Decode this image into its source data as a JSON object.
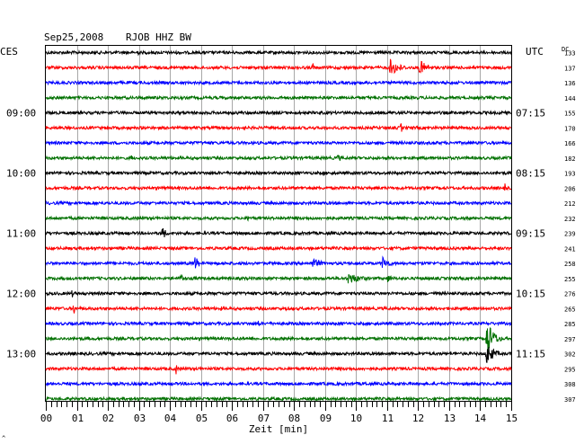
{
  "header": {
    "date": "Sep25,2008",
    "station": "RJOB HHZ BW",
    "left_tz": "CES",
    "right_tz": "UTC",
    "dc_label": "DC"
  },
  "footer": {
    "xlabel": "Zeit [min]",
    "corner_mark": "^"
  },
  "chart_data": {
    "type": "line",
    "title": "Sep25,2008  RJOB HHZ BW",
    "xlabel": "Zeit [min]",
    "xlim": [
      0,
      15
    ],
    "x_ticks": [
      "00",
      "01",
      "02",
      "03",
      "04",
      "05",
      "06",
      "07",
      "08",
      "09",
      "10",
      "11",
      "12",
      "13",
      "14",
      "15"
    ],
    "trace_colors": [
      "#000000",
      "#ff0000",
      "#0000ff",
      "#007000"
    ],
    "local_time_labels": [
      "09:00",
      "10:00",
      "11:00",
      "12:00",
      "13:00"
    ],
    "utc_time_labels": [
      "07:15",
      "08:15",
      "09:15",
      "10:15",
      "11:15"
    ],
    "dc_offsets": [
      133,
      137,
      136,
      144,
      155,
      170,
      166,
      182,
      193,
      206,
      212,
      232,
      239,
      241,
      258,
      255,
      276,
      265,
      285,
      297,
      302,
      295,
      308,
      307
    ],
    "events": [
      {
        "row": 0,
        "minute": 2.95,
        "amplitude": 7
      },
      {
        "row": 1,
        "minute": 8.6,
        "amplitude": 8
      },
      {
        "row": 1,
        "minute": 11.1,
        "amplitude": 10,
        "duration": 0.7
      },
      {
        "row": 1,
        "minute": 12.05,
        "amplitude": 9,
        "duration": 0.6
      },
      {
        "row": 5,
        "minute": 11.45,
        "amplitude": 8
      },
      {
        "row": 7,
        "minute": 2.75,
        "amplitude": 7
      },
      {
        "row": 7,
        "minute": 9.4,
        "amplitude": 4,
        "duration": 0.5
      },
      {
        "row": 8,
        "minute": 8.95,
        "amplitude": 5
      },
      {
        "row": 9,
        "minute": 4.3,
        "amplitude": 3
      },
      {
        "row": 9,
        "minute": 14.8,
        "amplitude": 7
      },
      {
        "row": 11,
        "minute": 6.5,
        "amplitude": 5
      },
      {
        "row": 12,
        "minute": 3.75,
        "amplitude": 8,
        "duration": 0.3
      },
      {
        "row": 14,
        "minute": 4.8,
        "amplitude": 9,
        "duration": 0.3
      },
      {
        "row": 14,
        "minute": 8.6,
        "amplitude": 6,
        "duration": 0.7
      },
      {
        "row": 14,
        "minute": 10.85,
        "amplitude": 8,
        "duration": 0.5
      },
      {
        "row": 15,
        "minute": 4.35,
        "amplitude": 5,
        "duration": 0.4
      },
      {
        "row": 15,
        "minute": 9.75,
        "amplitude": 7,
        "duration": 1.0
      },
      {
        "row": 15,
        "minute": 11.0,
        "amplitude": 5,
        "duration": 0.5
      },
      {
        "row": 16,
        "minute": 0.85,
        "amplitude": 5
      },
      {
        "row": 17,
        "minute": 0.9,
        "amplitude": 9
      },
      {
        "row": 17,
        "minute": 5.65,
        "amplitude": 3
      },
      {
        "row": 17,
        "minute": 7.75,
        "amplitude": 4
      },
      {
        "row": 18,
        "minute": 6.85,
        "amplitude": 6
      },
      {
        "row": 19,
        "minute": 14.2,
        "amplitude": 22,
        "duration": 0.5
      },
      {
        "row": 20,
        "minute": 14.2,
        "amplitude": 14,
        "duration": 0.5
      },
      {
        "row": 21,
        "minute": 4.2,
        "amplitude": 8
      },
      {
        "row": 22,
        "minute": 10.3,
        "amplitude": 5
      }
    ]
  }
}
